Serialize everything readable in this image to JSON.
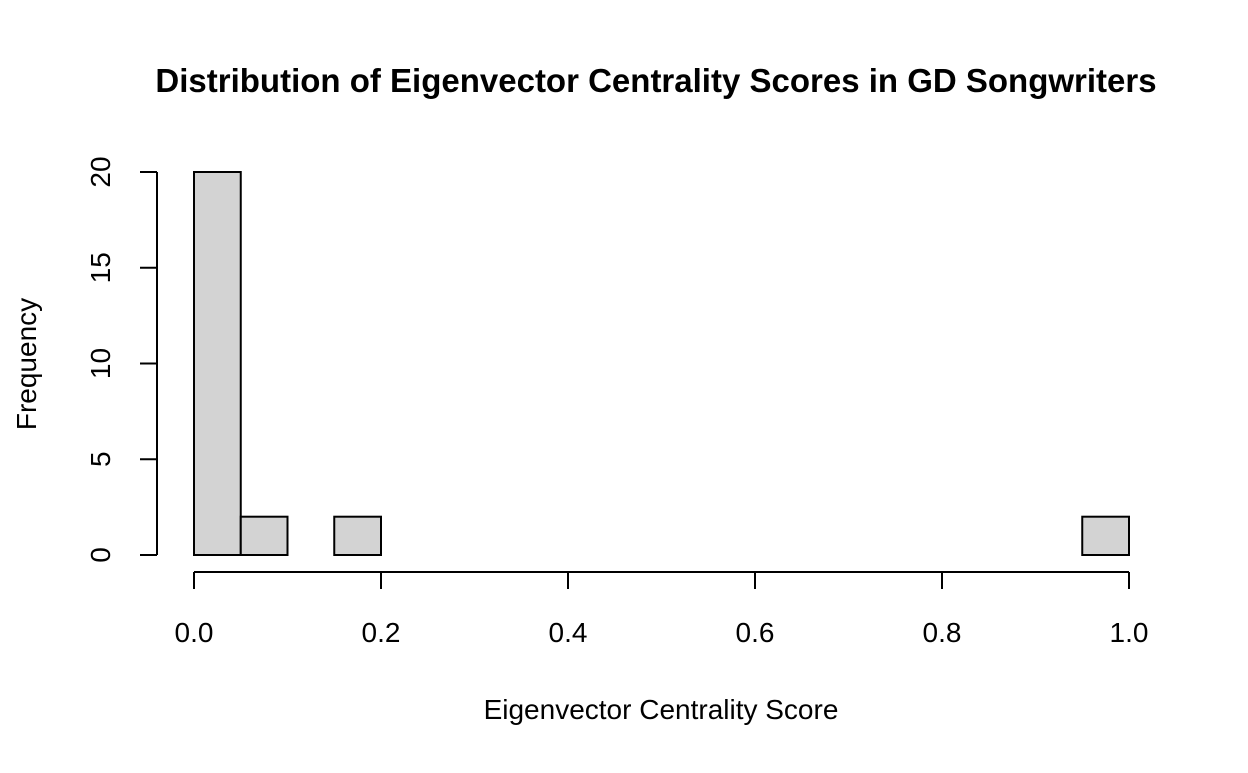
{
  "chart_data": {
    "type": "bar",
    "subtype": "histogram",
    "title": "Distribution of Eigenvector Centrality Scores in GD Songwriters",
    "xlabel": "Eigenvector Centrality Score",
    "ylabel": "Frequency",
    "bins": [
      {
        "start": 0.0,
        "end": 0.05,
        "count": 20
      },
      {
        "start": 0.05,
        "end": 0.1,
        "count": 2
      },
      {
        "start": 0.1,
        "end": 0.15,
        "count": 0
      },
      {
        "start": 0.15,
        "end": 0.2,
        "count": 2
      },
      {
        "start": 0.2,
        "end": 0.25,
        "count": 0
      },
      {
        "start": 0.25,
        "end": 0.3,
        "count": 0
      },
      {
        "start": 0.3,
        "end": 0.35,
        "count": 0
      },
      {
        "start": 0.35,
        "end": 0.4,
        "count": 0
      },
      {
        "start": 0.4,
        "end": 0.45,
        "count": 0
      },
      {
        "start": 0.45,
        "end": 0.5,
        "count": 0
      },
      {
        "start": 0.5,
        "end": 0.55,
        "count": 0
      },
      {
        "start": 0.55,
        "end": 0.6,
        "count": 0
      },
      {
        "start": 0.6,
        "end": 0.65,
        "count": 0
      },
      {
        "start": 0.65,
        "end": 0.7,
        "count": 0
      },
      {
        "start": 0.7,
        "end": 0.75,
        "count": 0
      },
      {
        "start": 0.75,
        "end": 0.8,
        "count": 0
      },
      {
        "start": 0.8,
        "end": 0.85,
        "count": 0
      },
      {
        "start": 0.85,
        "end": 0.9,
        "count": 0
      },
      {
        "start": 0.9,
        "end": 0.95,
        "count": 0
      },
      {
        "start": 0.95,
        "end": 1.0,
        "count": 2
      }
    ],
    "xlim": [
      0,
      1
    ],
    "ylim": [
      0,
      20
    ],
    "x_ticks": [
      "0.0",
      "0.2",
      "0.4",
      "0.6",
      "0.8",
      "1.0"
    ],
    "y_ticks": [
      "0",
      "5",
      "10",
      "15",
      "20"
    ],
    "grid": false,
    "bar_color": "#D3D3D3",
    "edge_color": "#000000"
  }
}
